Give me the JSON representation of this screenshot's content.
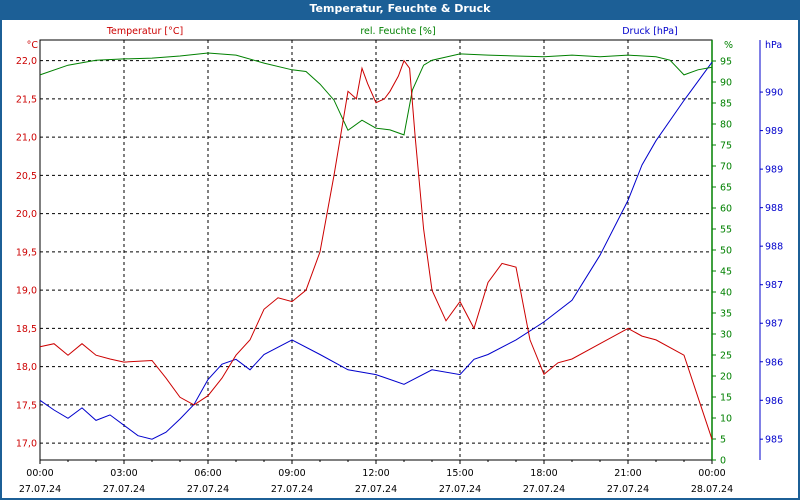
{
  "window": {
    "title": "Temperatur, Feuchte & Druck"
  },
  "colors": {
    "temperature": "#cc0000",
    "humidity": "#008000",
    "pressure": "#0000cc",
    "titlebar": "#1c5f96"
  },
  "chart_data": {
    "type": "line",
    "title": "Temperatur, Feuchte & Druck",
    "grid": true,
    "x_ticks": [
      {
        "time": "00:00",
        "date": "27.07.24",
        "h": 0
      },
      {
        "time": "03:00",
        "date": "27.07.24",
        "h": 3
      },
      {
        "time": "06:00",
        "date": "27.07.24",
        "h": 6
      },
      {
        "time": "09:00",
        "date": "27.07.24",
        "h": 9
      },
      {
        "time": "12:00",
        "date": "27.07.24",
        "h": 12
      },
      {
        "time": "15:00",
        "date": "27.07.24",
        "h": 15
      },
      {
        "time": "18:00",
        "date": "27.07.24",
        "h": 18
      },
      {
        "time": "21:00",
        "date": "27.07.24",
        "h": 21
      },
      {
        "time": "00:00",
        "date": "28.07.24",
        "h": 24
      }
    ],
    "xlim": [
      0,
      24
    ],
    "axes": {
      "temperature": {
        "label": "Temperatur [°C]",
        "unit": "°C",
        "ylim": [
          16.78,
          22.27
        ],
        "ticks": [
          {
            "v": 22.0,
            "t": "22,0"
          },
          {
            "v": 21.5,
            "t": "21,5"
          },
          {
            "v": 21.0,
            "t": "21,0"
          },
          {
            "v": 20.5,
            "t": "20,5"
          },
          {
            "v": 20.0,
            "t": "20,0"
          },
          {
            "v": 19.5,
            "t": "19,5"
          },
          {
            "v": 19.0,
            "t": "19,0"
          },
          {
            "v": 18.5,
            "t": "18,5"
          },
          {
            "v": 18.0,
            "t": "18,0"
          },
          {
            "v": 17.5,
            "t": "17,5"
          },
          {
            "v": 17.0,
            "t": "17,0"
          }
        ]
      },
      "humidity": {
        "label": "rel. Feuchte [%]",
        "unit": "%",
        "ylim": [
          0,
          100
        ],
        "ticks": [
          "0",
          "5",
          "10",
          "15",
          "20",
          "25",
          "30",
          "35",
          "40",
          "45",
          "50",
          "55",
          "60",
          "65",
          "70",
          "75",
          "80",
          "85",
          "90",
          "95"
        ]
      },
      "pressure": {
        "label": "Druck [hPa]",
        "unit": "hPa",
        "ylim": [
          984.7,
          990.75
        ],
        "ticks": [
          {
            "v": 990.0,
            "t": "990"
          },
          {
            "v": 989.445,
            "t": "989"
          },
          {
            "v": 988.89,
            "t": "989"
          },
          {
            "v": 988.335,
            "t": "988"
          },
          {
            "v": 987.78,
            "t": "988"
          },
          {
            "v": 987.225,
            "t": "987"
          },
          {
            "v": 986.67,
            "t": "987"
          },
          {
            "v": 986.115,
            "t": "986"
          },
          {
            "v": 985.56,
            "t": "986"
          },
          {
            "v": 985.0,
            "t": "985"
          }
        ]
      }
    },
    "series": [
      {
        "name": "Temperatur [°C]",
        "axis": "temperature",
        "x": [
          0,
          0.5,
          1,
          1.5,
          2,
          2.5,
          3,
          4,
          4.5,
          5,
          5.5,
          6,
          6.5,
          7,
          7.5,
          8,
          8.5,
          9,
          9.5,
          10,
          10.5,
          11,
          11.3,
          11.5,
          11.7,
          12,
          12.3,
          12.5,
          12.8,
          13,
          13.2,
          13.4,
          13.7,
          14,
          14.5,
          15,
          15.5,
          16,
          16.5,
          17,
          17.5,
          18,
          18.5,
          19,
          20,
          21,
          21.5,
          22,
          23,
          23.5,
          24
        ],
        "values": [
          18.26,
          18.3,
          18.15,
          18.3,
          18.15,
          18.1,
          18.06,
          18.08,
          17.85,
          17.6,
          17.5,
          17.62,
          17.85,
          18.15,
          18.35,
          18.75,
          18.9,
          18.85,
          19.0,
          19.5,
          20.5,
          21.6,
          21.5,
          21.9,
          21.7,
          21.45,
          21.5,
          21.6,
          21.8,
          22.0,
          21.9,
          21.0,
          19.8,
          19.0,
          18.6,
          18.85,
          18.5,
          19.1,
          19.35,
          19.3,
          18.35,
          17.9,
          18.05,
          18.1,
          18.3,
          18.5,
          18.4,
          18.35,
          18.15,
          17.6,
          17.05
        ]
      },
      {
        "name": "rel. Feuchte [%]",
        "axis": "humidity",
        "x": [
          0,
          1,
          2,
          3,
          4,
          5,
          6,
          7,
          8,
          9,
          9.5,
          10,
          10.5,
          11,
          11.5,
          12,
          12.5,
          13,
          13.3,
          13.7,
          14,
          15,
          16,
          17,
          18,
          19,
          20,
          21,
          22,
          22.5,
          23,
          23.5,
          24
        ],
        "values": [
          91.7,
          94,
          95.2,
          95.5,
          95.7,
          96.2,
          96.9,
          96.4,
          94.5,
          92.9,
          92.5,
          89.5,
          85.7,
          78.5,
          80.9,
          79,
          78.6,
          77.4,
          88.1,
          94,
          95.2,
          96.7,
          96.4,
          96.2,
          96,
          96.4,
          96,
          96.4,
          96,
          95.2,
          91.7,
          92.9,
          93.5
        ]
      },
      {
        "name": "Druck [hPa]",
        "axis": "pressure",
        "x": [
          0,
          0.5,
          1,
          1.5,
          2,
          2.5,
          3,
          3.5,
          4,
          4.5,
          5,
          5.5,
          6,
          6.5,
          7,
          7.5,
          8,
          9,
          10,
          11,
          12,
          13,
          14,
          15,
          15.5,
          16,
          17,
          18,
          19,
          20,
          21,
          21.5,
          22,
          23,
          24
        ],
        "values": [
          985.56,
          985.42,
          985.3,
          985.45,
          985.27,
          985.35,
          985.2,
          985.05,
          985.0,
          985.1,
          985.29,
          985.5,
          985.86,
          986.08,
          986.15,
          986.0,
          986.22,
          986.43,
          986.22,
          986.0,
          985.93,
          985.79,
          986.0,
          985.93,
          986.15,
          986.22,
          986.43,
          986.69,
          987.0,
          987.65,
          988.44,
          988.95,
          989.3,
          989.88,
          990.43
        ]
      }
    ]
  }
}
